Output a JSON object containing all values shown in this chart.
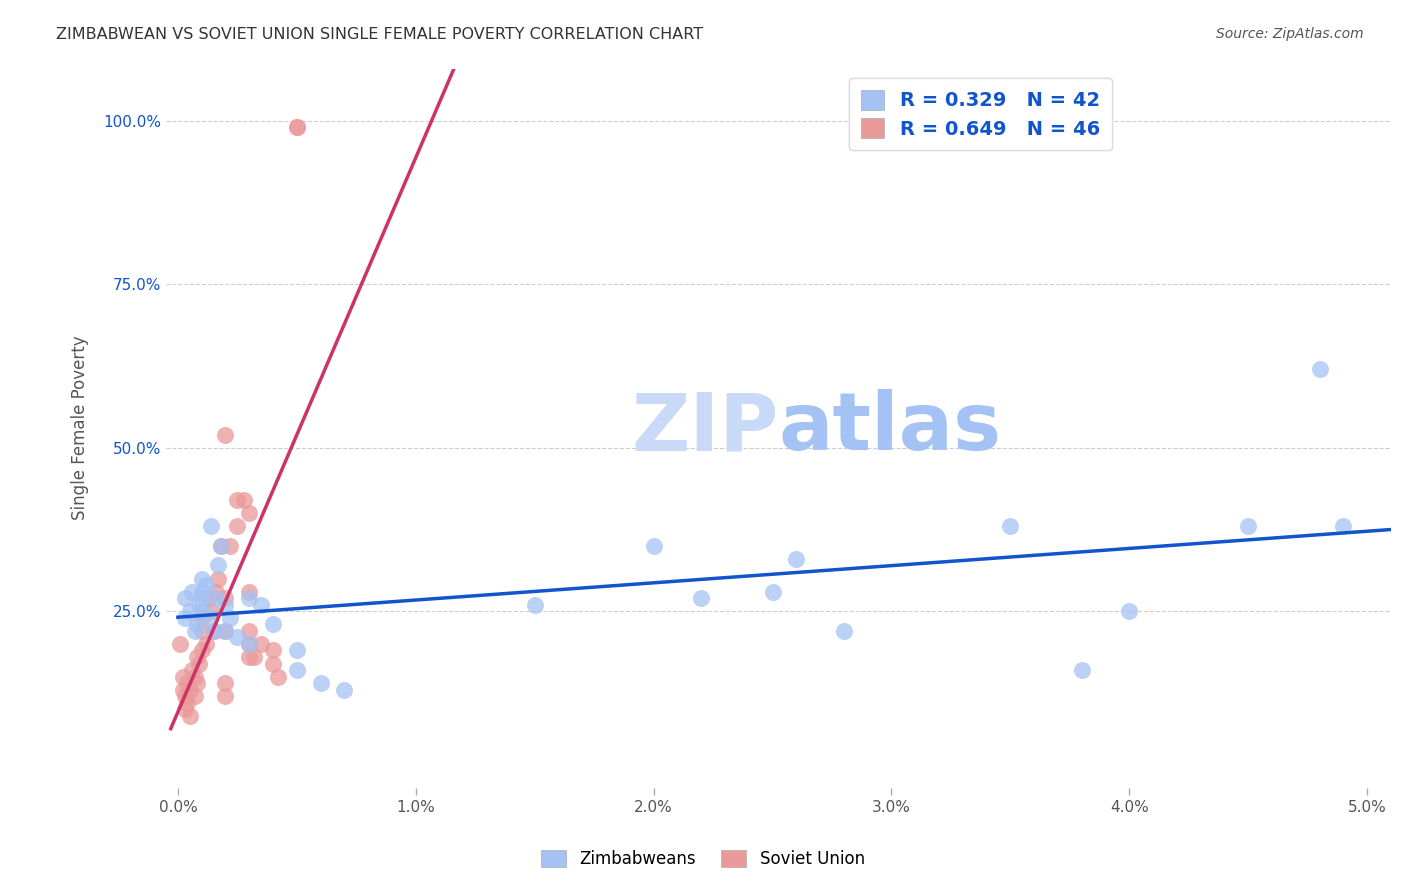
{
  "title": "ZIMBABWEAN VS SOVIET UNION SINGLE FEMALE POVERTY CORRELATION CHART",
  "source": "Source: ZipAtlas.com",
  "ylabel": "Single Female Poverty",
  "xlim": [
    -0.0005,
    0.051
  ],
  "ylim": [
    -0.02,
    1.08
  ],
  "xtick_labels": [
    "0.0%",
    "1.0%",
    "2.0%",
    "3.0%",
    "4.0%",
    "5.0%"
  ],
  "xtick_vals": [
    0.0,
    0.01,
    0.02,
    0.03,
    0.04,
    0.05
  ],
  "ytick_labels": [
    "25.0%",
    "50.0%",
    "75.0%",
    "100.0%"
  ],
  "ytick_vals": [
    0.25,
    0.5,
    0.75,
    1.0
  ],
  "blue_scatter_color": "#a4c2f4",
  "pink_scatter_color": "#ea9999",
  "blue_line_color": "#1155cc",
  "pink_line_color": "#cc3366",
  "legend_blue_label": "Zimbabweans",
  "legend_pink_label": "Soviet Union",
  "R_blue": 0.329,
  "N_blue": 42,
  "R_pink": 0.649,
  "N_pink": 46,
  "watermark_zip_color": "#c9daf8",
  "watermark_atlas_color": "#a4c2f4",
  "grid_color": "#cccccc",
  "blue_scatter_x": [
    0.0003,
    0.0003,
    0.0005,
    0.0006,
    0.0007,
    0.0008,
    0.0009,
    0.001,
    0.001,
    0.001,
    0.001,
    0.0012,
    0.0013,
    0.0014,
    0.0015,
    0.0016,
    0.0017,
    0.0018,
    0.002,
    0.002,
    0.0022,
    0.0025,
    0.003,
    0.003,
    0.0035,
    0.004,
    0.005,
    0.005,
    0.006,
    0.007,
    0.015,
    0.02,
    0.022,
    0.025,
    0.026,
    0.028,
    0.035,
    0.038,
    0.04,
    0.045,
    0.048,
    0.049
  ],
  "blue_scatter_y": [
    0.27,
    0.24,
    0.25,
    0.28,
    0.22,
    0.23,
    0.26,
    0.3,
    0.28,
    0.27,
    0.25,
    0.29,
    0.24,
    0.38,
    0.22,
    0.27,
    0.32,
    0.35,
    0.22,
    0.26,
    0.24,
    0.21,
    0.2,
    0.27,
    0.26,
    0.23,
    0.19,
    0.16,
    0.14,
    0.13,
    0.26,
    0.35,
    0.27,
    0.28,
    0.33,
    0.22,
    0.38,
    0.16,
    0.25,
    0.38,
    0.62,
    0.38
  ],
  "pink_scatter_x": [
    0.0001,
    0.0002,
    0.0002,
    0.0003,
    0.0003,
    0.0004,
    0.0004,
    0.0005,
    0.0005,
    0.0006,
    0.0007,
    0.0007,
    0.0008,
    0.0008,
    0.0009,
    0.001,
    0.001,
    0.001,
    0.0012,
    0.0013,
    0.0014,
    0.0015,
    0.0016,
    0.0017,
    0.0018,
    0.002,
    0.002,
    0.0022,
    0.0025,
    0.003,
    0.003,
    0.0032,
    0.0035,
    0.004,
    0.004,
    0.0042,
    0.005,
    0.005,
    0.003,
    0.003,
    0.0025,
    0.0028,
    0.002,
    0.002,
    0.002,
    0.003
  ],
  "pink_scatter_y": [
    0.2,
    0.15,
    0.13,
    0.12,
    0.1,
    0.14,
    0.11,
    0.13,
    0.09,
    0.16,
    0.12,
    0.15,
    0.14,
    0.18,
    0.17,
    0.19,
    0.22,
    0.24,
    0.2,
    0.27,
    0.25,
    0.22,
    0.28,
    0.3,
    0.35,
    0.22,
    0.27,
    0.35,
    0.38,
    0.4,
    0.22,
    0.18,
    0.2,
    0.17,
    0.19,
    0.15,
    0.99,
    0.99,
    0.2,
    0.18,
    0.42,
    0.42,
    0.14,
    0.12,
    0.52,
    0.28
  ]
}
